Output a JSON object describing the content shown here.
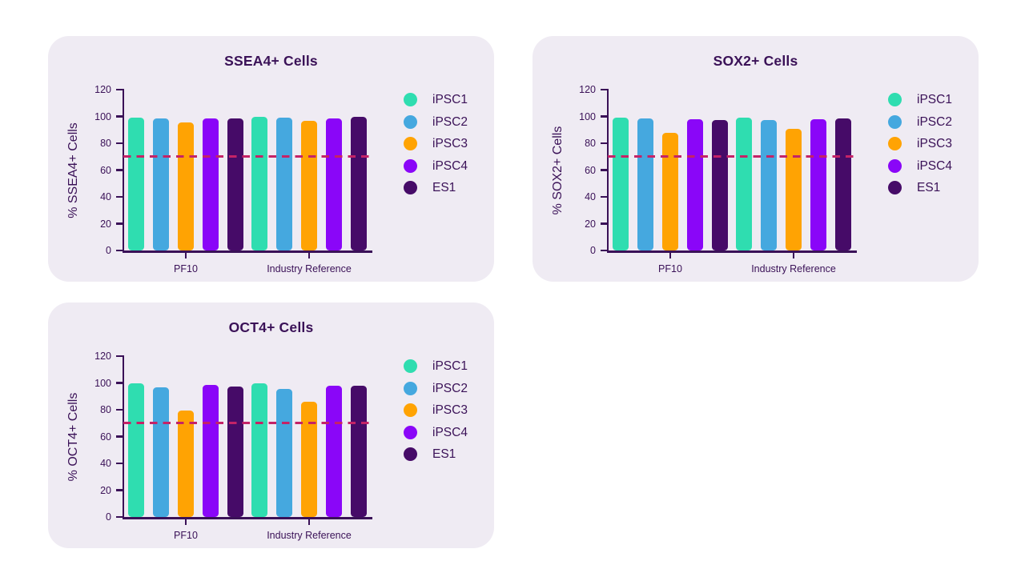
{
  "colors": {
    "page_bg": "#ffffff",
    "card_bg": "#efebf3",
    "ink": "#3a1157",
    "threshold": "#c42367"
  },
  "series": [
    {
      "name": "iPSC1",
      "color": "#2fddb0"
    },
    {
      "name": "iPSC2",
      "color": "#45a8df"
    },
    {
      "name": "iPSC3",
      "color": "#ffa303"
    },
    {
      "name": "iPSC4",
      "color": "#8a06f8"
    },
    {
      "name": "ES1",
      "color": "#460b68"
    }
  ],
  "chart_data": [
    {
      "type": "bar",
      "title": "SSEA4+ Cells",
      "ylabel": "% SSEA4+ Cells",
      "xlabel": "",
      "categories": [
        "PF10",
        "Industry Reference"
      ],
      "ylim": [
        0,
        120
      ],
      "yticks": [
        0,
        20,
        40,
        60,
        80,
        100,
        120
      ],
      "grid": false,
      "legend_position": "right",
      "threshold": 70,
      "series": [
        {
          "name": "iPSC1",
          "values": [
            99,
            99.5
          ]
        },
        {
          "name": "iPSC2",
          "values": [
            98.5,
            99
          ]
        },
        {
          "name": "iPSC3",
          "values": [
            95.5,
            97
          ]
        },
        {
          "name": "iPSC4",
          "values": [
            98.5,
            98.5
          ]
        },
        {
          "name": "ES1",
          "values": [
            98.5,
            99.5
          ]
        }
      ]
    },
    {
      "type": "bar",
      "title": "SOX2+ Cells",
      "ylabel": "% SOX2+ Cells",
      "xlabel": "",
      "categories": [
        "PF10",
        "Industry Reference"
      ],
      "ylim": [
        0,
        120
      ],
      "yticks": [
        0,
        20,
        40,
        60,
        80,
        100,
        120
      ],
      "grid": false,
      "legend_position": "right",
      "threshold": 70,
      "series": [
        {
          "name": "iPSC1",
          "values": [
            99,
            99
          ]
        },
        {
          "name": "iPSC2",
          "values": [
            98.5,
            97.5
          ]
        },
        {
          "name": "iPSC3",
          "values": [
            87.5,
            91
          ]
        },
        {
          "name": "iPSC4",
          "values": [
            98,
            98
          ]
        },
        {
          "name": "ES1",
          "values": [
            97.5,
            98.5
          ]
        }
      ]
    },
    {
      "type": "bar",
      "title": "OCT4+ Cells",
      "ylabel": "% OCT4+ Cells",
      "xlabel": "",
      "categories": [
        "PF10",
        "Industry Reference"
      ],
      "ylim": [
        0,
        120
      ],
      "yticks": [
        0,
        20,
        40,
        60,
        80,
        100,
        120
      ],
      "grid": false,
      "legend_position": "right",
      "threshold": 70,
      "series": [
        {
          "name": "iPSC1",
          "values": [
            99.5,
            99.5
          ]
        },
        {
          "name": "iPSC2",
          "values": [
            97,
            95.5
          ]
        },
        {
          "name": "iPSC3",
          "values": [
            79.5,
            86
          ]
        },
        {
          "name": "iPSC4",
          "values": [
            98.5,
            98
          ]
        },
        {
          "name": "ES1",
          "values": [
            97.5,
            98
          ]
        }
      ]
    }
  ]
}
